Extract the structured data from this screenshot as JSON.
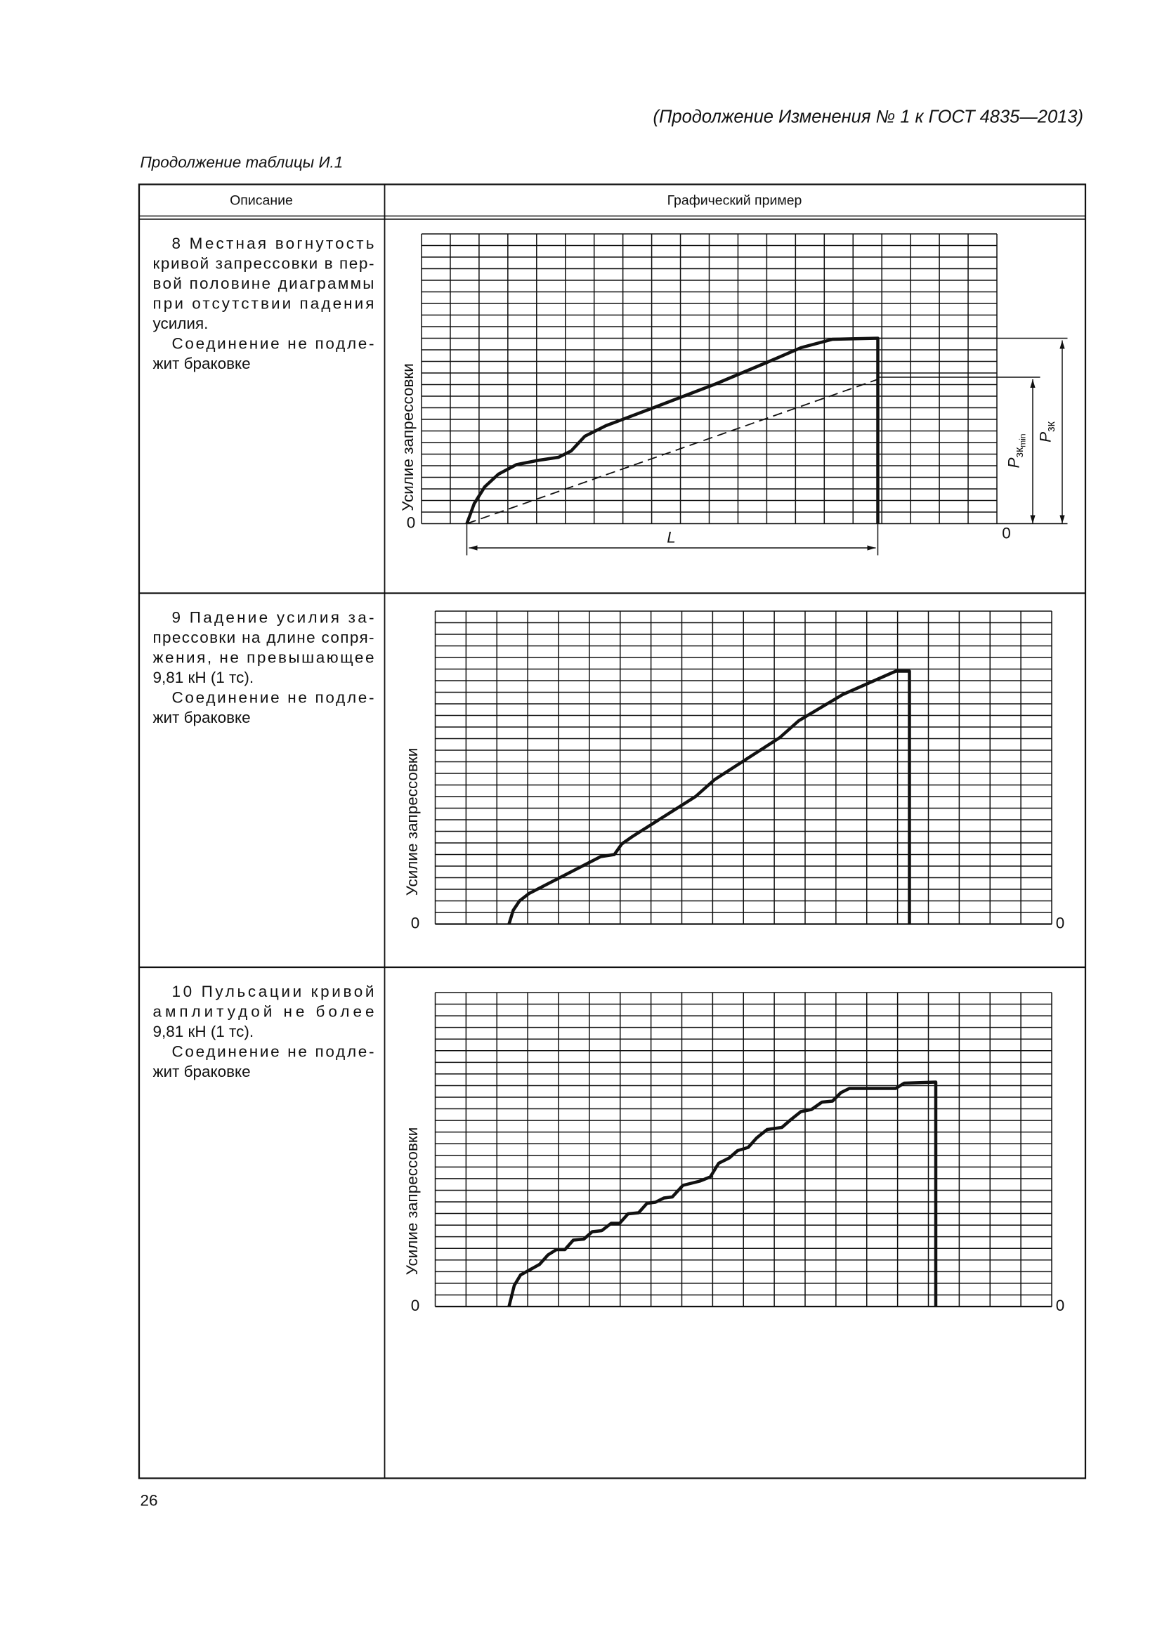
{
  "header": {
    "running_title": "(Продолжение Изменения № 1 к ГОСТ 4835—2013)",
    "table_caption": "Продолжение таблицы И.1"
  },
  "table": {
    "columns": [
      "Описание",
      "Графический пример"
    ],
    "rows": [
      {
        "paragraphs": [
          [
            "8 Местная вогнутость",
            "кривой запрессовки в пер-",
            "вой половине диаграммы",
            "при отсутствии падения",
            "усилия."
          ],
          [
            "Соединение не подле-",
            "жит браковке"
          ]
        ],
        "graph": {
          "y_axis_label": "Усилие запрессовки",
          "zero_left": "0",
          "zero_right": "0",
          "length_label": "L",
          "p_max": {
            "symbol": "P",
            "subscript": "зк"
          },
          "p_min": {
            "symbol": "P",
            "subscript": "зк",
            "subsubscript": "min"
          }
        }
      },
      {
        "paragraphs": [
          [
            "9 Падение усилия за-",
            "прессовки на длине сопря-",
            "жения, не превышающее",
            "9,81 кН (1 тс)."
          ],
          [
            "Соединение не подле-",
            "жит браковке"
          ]
        ],
        "graph": {
          "y_axis_label": "Усилие запрессовки",
          "zero_left": "0",
          "zero_right": "0"
        }
      },
      {
        "paragraphs": [
          [
            "10 Пульсации кривой",
            "амплитудой не более",
            "9,81 кН (1 тс)."
          ],
          [
            "Соединение не подле-",
            "жит браковке"
          ]
        ],
        "graph": {
          "y_axis_label": "Усилие запрессовки",
          "zero_left": "0",
          "zero_right": "0"
        }
      }
    ]
  },
  "footer": {
    "page_number": "26"
  }
}
